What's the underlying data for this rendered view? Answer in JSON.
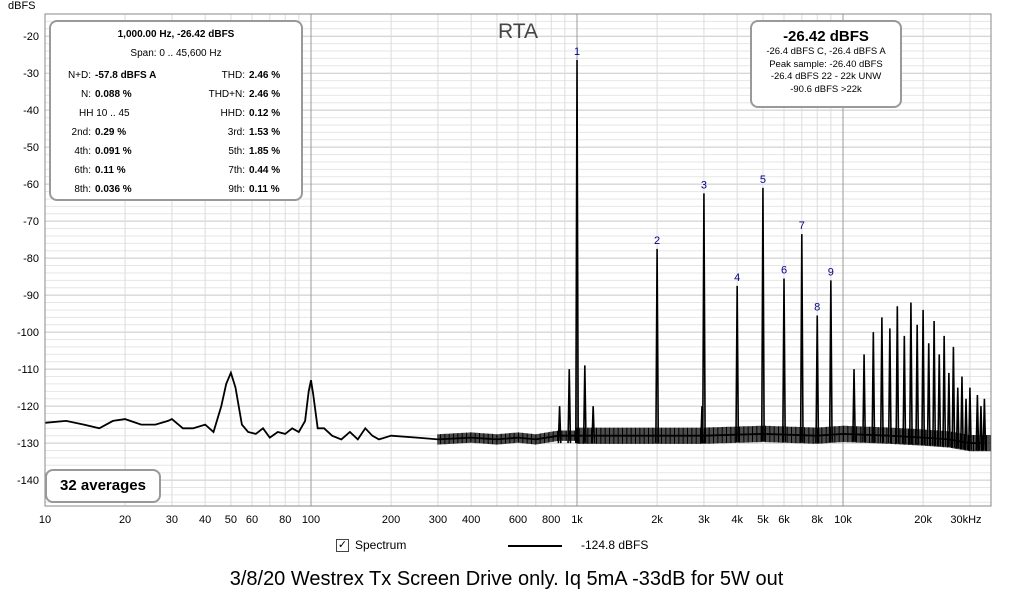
{
  "chart_data": {
    "type": "line",
    "title": "RTA",
    "ylabel": "dBFS",
    "xlabel": "",
    "x_scale": "log",
    "xlim": [
      10,
      36000
    ],
    "ylim": [
      -147,
      -14
    ],
    "grid": true,
    "y_ticks": [
      -20,
      -30,
      -40,
      -50,
      -60,
      -70,
      -80,
      -90,
      -100,
      -110,
      -120,
      -130,
      -140
    ],
    "x_ticks": [
      {
        "v": 10,
        "label": "10"
      },
      {
        "v": 20,
        "label": "20"
      },
      {
        "v": 30,
        "label": "30"
      },
      {
        "v": 40,
        "label": "40"
      },
      {
        "v": 50,
        "label": "50"
      },
      {
        "v": 60,
        "label": "60"
      },
      {
        "v": 80,
        "label": "80"
      },
      {
        "v": 100,
        "label": "100"
      },
      {
        "v": 200,
        "label": "200"
      },
      {
        "v": 300,
        "label": "300"
      },
      {
        "v": 400,
        "label": "400"
      },
      {
        "v": 600,
        "label": "600"
      },
      {
        "v": 800,
        "label": "800"
      },
      {
        "v": 1000,
        "label": "1k"
      },
      {
        "v": 2000,
        "label": "2k"
      },
      {
        "v": 3000,
        "label": "3k"
      },
      {
        "v": 4000,
        "label": "4k"
      },
      {
        "v": 5000,
        "label": "5k"
      },
      {
        "v": 6000,
        "label": "6k"
      },
      {
        "v": 8000,
        "label": "8k"
      },
      {
        "v": 10000,
        "label": "10k"
      },
      {
        "v": 20000,
        "label": "20k"
      },
      {
        "v": 30000,
        "label": "30kHz"
      }
    ],
    "series": [
      {
        "name": "Spectrum",
        "color": "#000000",
        "noise_floor": [
          [
            10,
            -124.5
          ],
          [
            12,
            -124
          ],
          [
            14,
            -125
          ],
          [
            16,
            -126
          ],
          [
            18,
            -124
          ],
          [
            20,
            -123.5
          ],
          [
            23,
            -125
          ],
          [
            26,
            -125
          ],
          [
            29,
            -124
          ],
          [
            30,
            -123.5
          ],
          [
            33,
            -126
          ],
          [
            36,
            -126
          ],
          [
            40,
            -125
          ],
          [
            43,
            -127
          ],
          [
            46,
            -120
          ],
          [
            48,
            -114
          ],
          [
            50,
            -111
          ],
          [
            52,
            -115
          ],
          [
            55,
            -125
          ],
          [
            58,
            -127
          ],
          [
            62,
            -127.5
          ],
          [
            66,
            -126
          ],
          [
            70,
            -128.5
          ],
          [
            75,
            -127
          ],
          [
            80,
            -127.5
          ],
          [
            85,
            -126
          ],
          [
            90,
            -127
          ],
          [
            95,
            -124
          ],
          [
            98,
            -116
          ],
          [
            100,
            -113
          ],
          [
            102,
            -117
          ],
          [
            106,
            -126
          ],
          [
            112,
            -126
          ],
          [
            120,
            -128
          ],
          [
            130,
            -129
          ],
          [
            140,
            -127
          ],
          [
            150,
            -129
          ],
          [
            160,
            -126
          ],
          [
            170,
            -128
          ],
          [
            180,
            -129
          ],
          [
            200,
            -128
          ],
          [
            250,
            -128.5
          ],
          [
            300,
            -129
          ],
          [
            400,
            -128.5
          ],
          [
            500,
            -129
          ],
          [
            600,
            -128.5
          ],
          [
            700,
            -129
          ],
          [
            850,
            -128
          ],
          [
            1200,
            -128
          ],
          [
            2000,
            -128
          ],
          [
            3000,
            -128
          ],
          [
            5000,
            -127.5
          ],
          [
            8000,
            -128
          ],
          [
            10000,
            -127.5
          ],
          [
            15000,
            -128
          ],
          [
            20000,
            -128.5
          ],
          [
            25000,
            -129
          ],
          [
            30000,
            -130
          ],
          [
            34000,
            -130
          ]
        ],
        "peaks": [
          {
            "x": 860,
            "y": -120
          },
          {
            "x": 935,
            "y": -110
          },
          {
            "x": 1000,
            "y": -26.42
          },
          {
            "x": 1070,
            "y": -109
          },
          {
            "x": 1150,
            "y": -120
          },
          {
            "x": 2000,
            "y": -77.5
          },
          {
            "x": 2950,
            "y": -120
          },
          {
            "x": 3000,
            "y": -62.5
          },
          {
            "x": 4000,
            "y": -87.5
          },
          {
            "x": 5000,
            "y": -61
          },
          {
            "x": 6000,
            "y": -85.5
          },
          {
            "x": 7000,
            "y": -73.5
          },
          {
            "x": 8000,
            "y": -95.5
          },
          {
            "x": 9000,
            "y": -86
          },
          {
            "x": 11000,
            "y": -110
          },
          {
            "x": 12000,
            "y": -106
          },
          {
            "x": 13000,
            "y": -100
          },
          {
            "x": 14000,
            "y": -96
          },
          {
            "x": 15000,
            "y": -99
          },
          {
            "x": 16000,
            "y": -93
          },
          {
            "x": 17000,
            "y": -101
          },
          {
            "x": 18000,
            "y": -92
          },
          {
            "x": 19000,
            "y": -98
          },
          {
            "x": 20000,
            "y": -94
          },
          {
            "x": 21000,
            "y": -103
          },
          {
            "x": 22000,
            "y": -97
          },
          {
            "x": 23000,
            "y": -106
          },
          {
            "x": 24000,
            "y": -101
          },
          {
            "x": 25000,
            "y": -111
          },
          {
            "x": 26000,
            "y": -104
          },
          {
            "x": 27000,
            "y": -115
          },
          {
            "x": 28000,
            "y": -112
          },
          {
            "x": 29000,
            "y": -118
          },
          {
            "x": 30000,
            "y": -115
          },
          {
            "x": 32000,
            "y": -117
          },
          {
            "x": 33000,
            "y": -120
          },
          {
            "x": 34000,
            "y": -118
          }
        ]
      }
    ],
    "harmonic_labels": [
      {
        "label": "1",
        "x": 1000,
        "y": -26.42
      },
      {
        "label": "2",
        "x": 2000,
        "y": -77.5
      },
      {
        "label": "3",
        "x": 3000,
        "y": -62.5
      },
      {
        "label": "4",
        "x": 4000,
        "y": -87.5
      },
      {
        "label": "5",
        "x": 5000,
        "y": -61
      },
      {
        "label": "6",
        "x": 6000,
        "y": -85.5
      },
      {
        "label": "7",
        "x": 7000,
        "y": -73.5
      },
      {
        "label": "8",
        "x": 8000,
        "y": -95.5
      },
      {
        "label": "9",
        "x": 9000,
        "y": -86
      }
    ]
  },
  "stats": {
    "header": "1,000.00 Hz, -26.42 dBFS",
    "span": "Span: 0 .. 45,600 Hz",
    "rows": [
      {
        "ll": "N+D:",
        "lv": "-57.8 dBFS A",
        "rl": "THD:",
        "rv": "2.46 %"
      },
      {
        "ll": "N:",
        "lv": "0.088 %",
        "rl": "THD+N:",
        "rv": "2.46 %"
      },
      {
        "ll": "",
        "lv": "",
        "rl": "HHD:",
        "rv": "0.12 %"
      },
      {
        "ll": "2nd:",
        "lv": "0.29 %",
        "rl": "3rd:",
        "rv": "1.53 %"
      },
      {
        "ll": "4th:",
        "lv": "0.091 %",
        "rl": "5th:",
        "rv": "1.85 %"
      },
      {
        "ll": "6th:",
        "lv": "0.11 %",
        "rl": "7th:",
        "rv": "0.44 %"
      },
      {
        "ll": "8th:",
        "lv": "0.036 %",
        "rl": "9th:",
        "rv": "0.11 %"
      }
    ],
    "hh": "HH 10 .. 45"
  },
  "level": {
    "big": "-26.42 dBFS",
    "lines": [
      "-26.4 dBFS C, -26.4 dBFS A",
      "Peak sample: -26.40 dBFS",
      "-26.4 dBFS 22 - 22k UNW",
      "-90.6 dBFS >22k"
    ]
  },
  "averages": "32 averages",
  "legend": {
    "checkbox_mark": "✓",
    "name": "Spectrum",
    "value": "-124.8 dBFS"
  },
  "caption": "3/8/20 Westrex Tx Screen Drive only. Iq 5mA -33dB for 5W out"
}
